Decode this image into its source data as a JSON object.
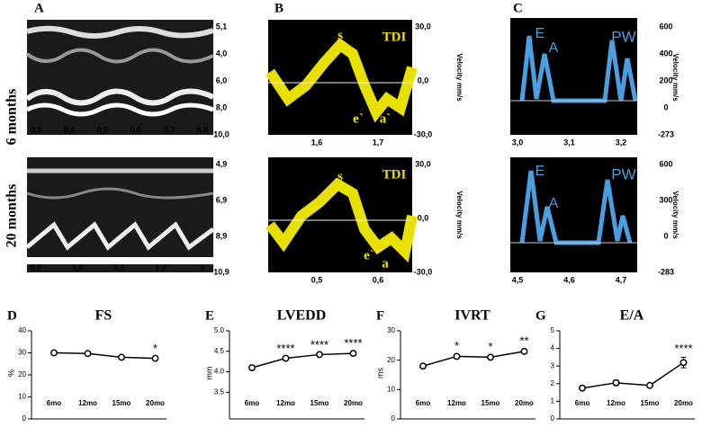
{
  "figure": {
    "rows": [
      "6 months",
      "20 months"
    ],
    "A": {
      "label": "A",
      "top_right": [
        "5,1",
        "4,0",
        "6,0",
        "8,0",
        "10,0"
      ],
      "top_x": [
        "0,3",
        "0,4",
        "0,5",
        "0,6",
        "0,7",
        "0,8"
      ],
      "bottom_right": [
        "4,9",
        "6,9",
        "8,9",
        "10,9"
      ],
      "bottom_x": [
        "0,9",
        "1,0",
        "1,1",
        "1,2",
        "1"
      ]
    },
    "B": {
      "label": "B",
      "tag": "TDI",
      "axis_title": "Velocity mm/s",
      "top_right": [
        "30,0",
        "0,0",
        "-30,0"
      ],
      "top_x": [
        "1,6",
        "1,7"
      ],
      "top_peaks": [
        "s",
        "e`",
        "a`"
      ],
      "bottom_right": [
        "30,0",
        "0,0",
        "-30,0"
      ],
      "bottom_x": [
        "0,5",
        "0,6"
      ],
      "bottom_peaks": [
        "s",
        "e`",
        "a"
      ]
    },
    "C": {
      "label": "C",
      "tag": "PW",
      "axis_title": "Velocity mm/s",
      "peaks": [
        "E",
        "A"
      ],
      "top_right": [
        "600",
        "400",
        "200",
        "0",
        "-273"
      ],
      "top_x": [
        "3,0",
        "3,1",
        "3,2"
      ],
      "bottom_right": [
        "600",
        "300",
        "0",
        "-283"
      ],
      "bottom_x": [
        "4,5",
        "4,6",
        "4,7"
      ]
    }
  },
  "chart_data": [
    {
      "type": "line",
      "label": "D",
      "title": "FS",
      "y_label": "%",
      "categories": [
        "6mo",
        "12mo",
        "15mo",
        "20mo"
      ],
      "values": [
        30,
        29.7,
        28,
        27.5
      ],
      "errors": [
        0.4,
        0.4,
        0.4,
        0.5
      ],
      "significance": [
        null,
        null,
        null,
        "*"
      ],
      "ylim": [
        0,
        40
      ],
      "yticks": [
        0,
        10,
        20,
        30,
        40
      ],
      "color": "#000000"
    },
    {
      "type": "line",
      "label": "E",
      "title": "LVEDD",
      "y_label": "mm",
      "categories": [
        "6mo",
        "12mo",
        "15mo",
        "20mo"
      ],
      "values": [
        4.1,
        4.33,
        4.42,
        4.45
      ],
      "errors": [
        0.02,
        0.02,
        0.02,
        0.03
      ],
      "significance": [
        null,
        "****",
        "****",
        "****"
      ],
      "ylim": [
        2.85,
        5.0
      ],
      "yticks": [
        {
          "value": 3.5,
          "label": "3.5"
        },
        {
          "value": 4.0,
          "label": "4.0"
        },
        {
          "value": 4.5,
          "label": "4.5"
        },
        {
          "value": 5.0,
          "label": "5.0"
        }
      ],
      "color": "#000000"
    },
    {
      "type": "line",
      "label": "F",
      "title": "IVRT",
      "y_label": "ms",
      "categories": [
        "6mo",
        "12mo",
        "15mo",
        "20mo"
      ],
      "values": [
        18,
        21.3,
        21,
        23
      ],
      "errors": [
        0.6,
        0.5,
        0.6,
        0.6
      ],
      "significance": [
        null,
        "*",
        "*",
        "**"
      ],
      "ylim": [
        0,
        30
      ],
      "yticks": [
        0,
        10,
        20,
        30
      ],
      "color": "#000000"
    },
    {
      "type": "line",
      "label": "G",
      "title": "E/A",
      "categories": [
        "6mo",
        "12mo",
        "15mo",
        "20mo"
      ],
      "values": [
        1.75,
        2.05,
        1.9,
        3.2
      ],
      "errors": [
        0.05,
        0.15,
        0.1,
        0.3
      ],
      "significance": [
        null,
        null,
        null,
        "****"
      ],
      "ylim": [
        0,
        5
      ],
      "yticks": [
        0,
        1,
        2,
        3,
        4,
        5
      ],
      "color": "#000000"
    }
  ]
}
